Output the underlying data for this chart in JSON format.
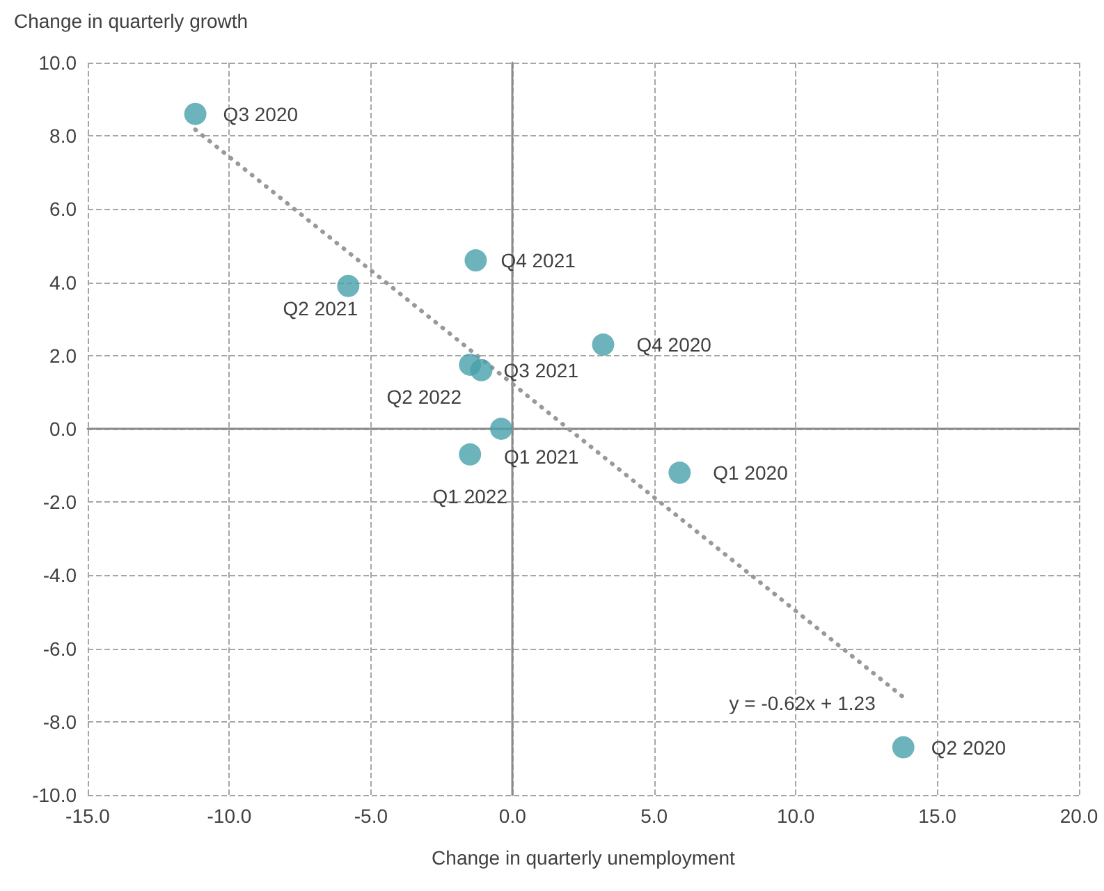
{
  "chart_data": {
    "type": "scatter",
    "xlabel": "Change in quarterly unemployment",
    "ylabel": "Change in quarterly growth",
    "xlim": [
      -15,
      20
    ],
    "ylim": [
      -10,
      10
    ],
    "xticks": [
      {
        "value": -15,
        "label": "-15.0"
      },
      {
        "value": -10,
        "label": "-10.0"
      },
      {
        "value": -5,
        "label": "-5.0"
      },
      {
        "value": 0,
        "label": "0.0"
      },
      {
        "value": 5,
        "label": "5.0"
      },
      {
        "value": 10,
        "label": "10.0"
      },
      {
        "value": 15,
        "label": "15.0"
      },
      {
        "value": 20,
        "label": "20.0"
      }
    ],
    "yticks": [
      {
        "value": -10,
        "label": "-10.0"
      },
      {
        "value": -8,
        "label": "-8.0"
      },
      {
        "value": -6,
        "label": "-6.0"
      },
      {
        "value": -4,
        "label": "-4.0"
      },
      {
        "value": -2,
        "label": "-2.0"
      },
      {
        "value": 0,
        "label": "0.0"
      },
      {
        "value": 2,
        "label": "2.0"
      },
      {
        "value": 4,
        "label": "4.0"
      },
      {
        "value": 6,
        "label": "6.0"
      },
      {
        "value": 8,
        "label": "8.0"
      },
      {
        "value": 10,
        "label": "10.0"
      }
    ],
    "grid": true,
    "series": [
      {
        "color": "#47a0aa",
        "marker": "circle",
        "x": [
          -11.2,
          -5.8,
          -1.3,
          3.2,
          -1.5,
          -1.1,
          -0.4,
          -1.5,
          5.9,
          13.8
        ],
        "values": [
          8.6,
          3.9,
          4.6,
          2.3,
          1.75,
          1.6,
          0.0,
          -0.7,
          -1.2,
          -8.7
        ]
      },
      {
        "type": "line",
        "color": "#999999",
        "marker": "none",
        "line_style": "dotted",
        "x": [
          -11.2,
          13.8
        ],
        "values": [
          8.17,
          -7.33
        ]
      }
    ],
    "annotations": [
      {
        "text": "Q3 2020",
        "x": -11.2,
        "y": 8.6
      },
      {
        "text": "Q2 2021",
        "x": -5.8,
        "y": 3.9
      },
      {
        "text": "Q4 2021",
        "x": -1.3,
        "y": 4.6
      },
      {
        "text": "Q4 2020",
        "x": 3.2,
        "y": 2.3
      },
      {
        "text": "Q2 2022",
        "x": -1.5,
        "y": 1.75
      },
      {
        "text": "Q3 2021",
        "x": -1.1,
        "y": 1.6
      },
      {
        "text": "Q1 2021",
        "x": -0.4,
        "y": 0.0
      },
      {
        "text": "Q1 2022",
        "x": -1.5,
        "y": -0.7
      },
      {
        "text": "Q1 2020",
        "x": 5.9,
        "y": -1.2
      },
      {
        "text": "Q2 2020",
        "x": 13.8,
        "y": -8.7
      },
      {
        "text": "y = -0.62x + 1.23",
        "x": 13.8,
        "y": -7.33
      }
    ]
  }
}
